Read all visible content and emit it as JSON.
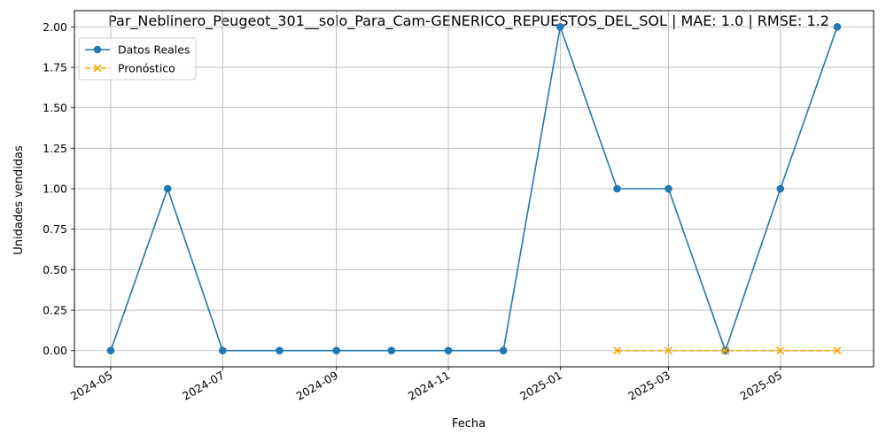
{
  "chart_data": {
    "type": "line",
    "title": "Par_Neblinero_Peugeot_301__solo_Para_Cam-GENERICO_REPUESTOS_DEL_SOL | MAE: 1.0 | RMSE: 1.2",
    "xlabel": "Fecha",
    "ylabel": "Unidades vendidas",
    "ylim": [
      -0.1,
      2.1
    ],
    "grid": true,
    "legend_position": "top-left",
    "x_ticks": [
      "2024-05",
      "2024-07",
      "2024-09",
      "2024-11",
      "2025-01",
      "2025-03",
      "2025-05"
    ],
    "y_ticks": [
      "0.00",
      "0.25",
      "0.50",
      "0.75",
      "1.00",
      "1.25",
      "1.50",
      "1.75",
      "2.00"
    ],
    "series": [
      {
        "name": "Datos Reales",
        "color": "#1f77b4",
        "marker": "circle",
        "linestyle": "solid",
        "x": [
          "2024-05",
          "2024-06",
          "2024-07",
          "2024-08",
          "2024-09",
          "2024-10",
          "2024-11",
          "2024-12",
          "2025-01",
          "2025-02",
          "2025-03",
          "2025-04",
          "2025-05",
          "2025-06"
        ],
        "values": [
          0,
          1,
          0,
          0,
          0,
          0,
          0,
          0,
          2,
          1,
          1,
          0,
          1,
          2
        ]
      },
      {
        "name": "Pronóstico",
        "color": "#ffa500",
        "marker": "x",
        "linestyle": "dashed",
        "x": [
          "2025-02",
          "2025-03",
          "2025-04",
          "2025-05",
          "2025-06"
        ],
        "values": [
          0,
          0,
          0,
          0,
          0
        ]
      }
    ]
  }
}
